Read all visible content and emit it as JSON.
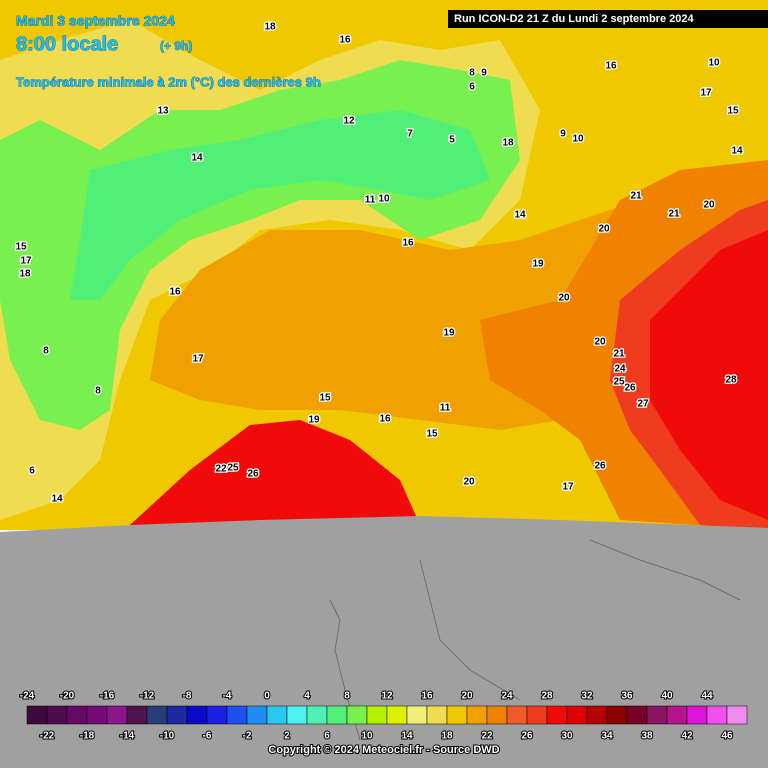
{
  "header": {
    "date": "Mardi 3 septembre 2024",
    "time": "8:00 locale",
    "offset": "(+ 9h)",
    "title": "Température minimale à 2m (°C) des dernières 9h",
    "run": "Run ICON-D2 21 Z du Lundi 2 septembre 2024"
  },
  "map_labels": [
    18,
    16,
    9,
    8,
    6,
    12,
    7,
    5,
    16,
    10,
    17,
    15,
    10,
    9,
    14,
    21,
    21,
    20,
    20,
    19,
    20,
    20,
    21,
    24,
    25,
    26,
    27,
    28,
    19,
    17,
    15,
    19,
    16,
    11,
    15,
    20,
    26,
    17,
    22,
    25,
    26,
    14,
    6,
    8,
    8,
    14,
    16,
    15,
    17,
    18,
    13,
    11,
    10,
    16,
    14,
    18
  ],
  "legend": {
    "values": [
      -24,
      -22,
      -20,
      -18,
      -16,
      -14,
      -12,
      -10,
      -8,
      -6,
      -4,
      -2,
      0,
      2,
      4,
      6,
      8,
      10,
      12,
      14,
      16,
      18,
      20,
      22,
      24,
      26,
      28,
      30,
      32,
      34,
      36,
      38,
      40,
      42,
      44,
      46
    ],
    "colors": [
      "#3c0a3c",
      "#500a50",
      "#640a64",
      "#780a78",
      "#8c148c",
      "#50144c",
      "#283c78",
      "#1e28a0",
      "#0a0ac8",
      "#1e1ee6",
      "#1e50f0",
      "#1e8cf0",
      "#28c8f0",
      "#50f0f0",
      "#50f0b4",
      "#50f078",
      "#78f050",
      "#b4f000",
      "#dcf000",
      "#f0f078",
      "#f0dc50",
      "#f0c800",
      "#f0a000",
      "#f08200",
      "#f05a28",
      "#f03c1e",
      "#f00a0a",
      "#dc0000",
      "#b40000",
      "#8c0000",
      "#780028",
      "#8c1464",
      "#b4148c",
      "#dc14dc",
      "#f050f0",
      "#f08cf0"
    ]
  },
  "copyright": "Copyright © 2024 Meteociel.fr - Source DWD"
}
